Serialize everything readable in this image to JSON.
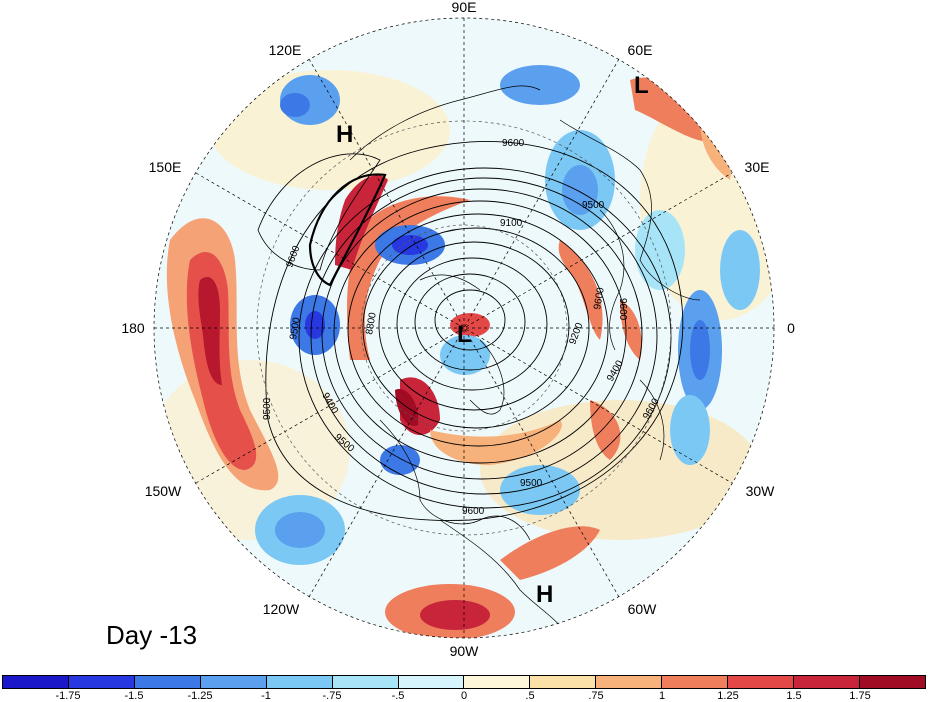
{
  "figure": {
    "panel_label": "Day -13",
    "longitude_labels": {
      "lon_90E": "90E",
      "lon_120E": "120E",
      "lon_60E": "60E",
      "lon_150E": "150E",
      "lon_30E": "30E",
      "lon_180": "180",
      "lon_0": "0",
      "lon_150W": "150W",
      "lon_30W": "30W",
      "lon_120W": "120W",
      "lon_60W": "60W",
      "lon_90W": "90W"
    },
    "pressure_centers": {
      "low_pole": "L",
      "low_60e": "L",
      "high_120e": "H",
      "high_60w": "H"
    },
    "contour_labels": [
      "9600",
      "9500",
      "9100",
      "9600",
      "9500",
      "9500",
      "8800",
      "9400",
      "9500",
      "9600",
      "9400",
      "9200",
      "9600",
      "9600",
      "9500",
      "9600"
    ]
  },
  "colorbar": {
    "tick_labels": [
      "-1.75",
      "-1.5",
      "-1.25",
      "-1",
      "-.75",
      "-.5",
      "0",
      ".5",
      ".75",
      "1",
      "1.25",
      "1.5",
      "1.75"
    ],
    "colors": [
      "#1a18c8",
      "#2838e0",
      "#3c78e6",
      "#5aa0ee",
      "#7cc8f4",
      "#a8e4f8",
      "#d6f4fc",
      "#fdf6d8",
      "#fbe0a8",
      "#f6b27a",
      "#ee7e5c",
      "#e44846",
      "#c8243a",
      "#a00c24"
    ]
  }
}
